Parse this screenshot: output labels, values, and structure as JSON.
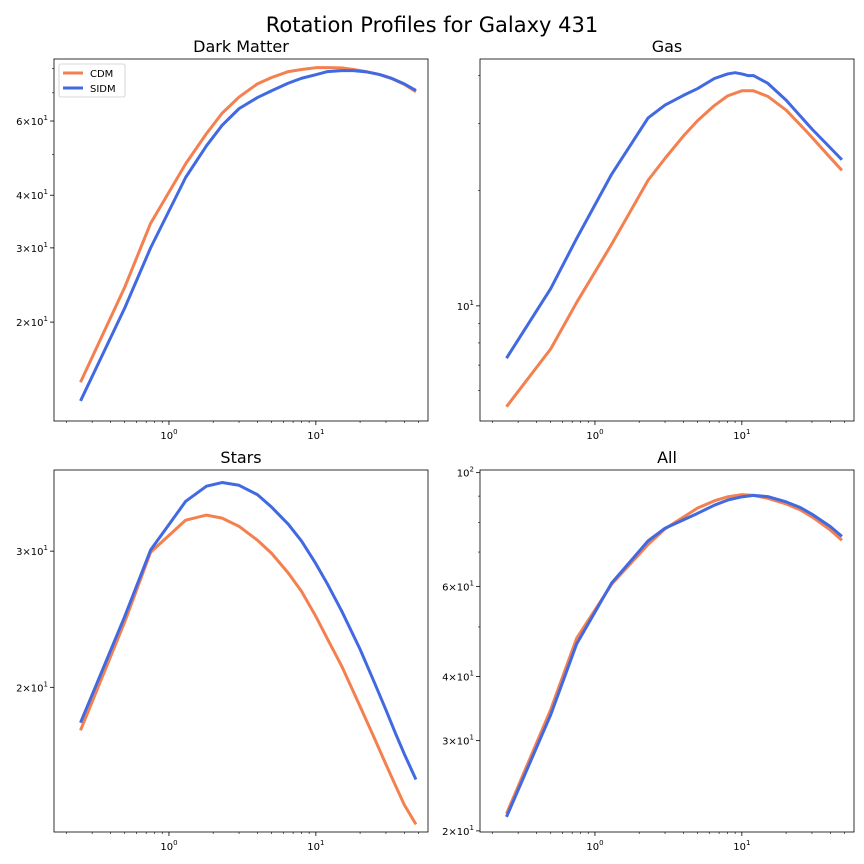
{
  "figure": {
    "suptitle": "Rotation Profiles for Galaxy 431",
    "colors": {
      "CDM": "#f4804f",
      "SIDM": "#4169e1"
    }
  },
  "chart_data": [
    {
      "type": "line",
      "title": "Dark Matter",
      "xscale": "log",
      "yscale": "log",
      "xlim": [
        0.165,
        58
      ],
      "ylim": [
        11.65,
        84.2
      ],
      "xticks": [
        {
          "value": 1,
          "label": "10^0"
        },
        {
          "value": 10,
          "label": "10^1"
        }
      ],
      "yticks": [
        {
          "value": 20,
          "label": "2×10^1"
        },
        {
          "value": 30,
          "label": "3×10^1"
        },
        {
          "value": 40,
          "label": "4×10^1"
        },
        {
          "value": 60,
          "label": "6×10^1"
        }
      ],
      "minor_yticks": [
        50,
        70,
        80
      ],
      "legend": {
        "position": "upper-left",
        "entries": [
          "CDM",
          "SIDM"
        ]
      },
      "series": [
        {
          "name": "CDM",
          "color": "#f4804f",
          "x": [
            0.25,
            0.5,
            0.75,
            1.3,
            1.8,
            2.3,
            3.0,
            4.0,
            5.0,
            6.5,
            8,
            10,
            12,
            15,
            18,
            22,
            27,
            33,
            40,
            48
          ],
          "y": [
            14.4,
            24.2,
            34.3,
            47.5,
            56,
            62.6,
            68.4,
            73.5,
            76.1,
            78.6,
            79.5,
            80.3,
            80.3,
            80.2,
            79.5,
            78.6,
            77.4,
            75.6,
            73.3,
            70.4
          ]
        },
        {
          "name": "SIDM",
          "color": "#4169e1",
          "x": [
            0.25,
            0.5,
            0.75,
            1.3,
            1.8,
            2.3,
            3.0,
            4.0,
            5.0,
            6.5,
            8,
            10,
            12,
            15,
            18,
            22,
            27,
            33,
            40,
            48
          ],
          "y": [
            13,
            21.6,
            30,
            44.1,
            52.4,
            58.6,
            64.2,
            68.2,
            70.8,
            73.8,
            75.8,
            77.3,
            78.6,
            79,
            79,
            78.5,
            77.4,
            75.7,
            73.5,
            70.9
          ]
        }
      ]
    },
    {
      "type": "line",
      "title": "Gas",
      "xscale": "log",
      "yscale": "log",
      "xlim": [
        0.165,
        58
      ],
      "ylim": [
        5.0,
        44.2
      ],
      "xticks": [
        {
          "value": 1,
          "label": "10^0"
        },
        {
          "value": 10,
          "label": "10^1"
        }
      ],
      "yticks": [
        {
          "value": 10,
          "label": "10^1"
        }
      ],
      "minor_yticks": [
        6,
        7,
        8,
        9,
        20,
        30,
        40
      ],
      "series": [
        {
          "name": "CDM",
          "color": "#f4804f",
          "x": [
            0.25,
            0.5,
            0.75,
            1.3,
            2.3,
            3.0,
            4.0,
            5.0,
            6.5,
            8,
            10,
            12,
            15,
            20,
            28,
            40,
            48
          ],
          "y": [
            5.45,
            7.72,
            10.2,
            14.5,
            21.3,
            24.3,
            27.8,
            30.5,
            33.4,
            35.4,
            36.5,
            36.5,
            35.3,
            32.5,
            28.4,
            24.4,
            22.6
          ]
        },
        {
          "name": "SIDM",
          "color": "#4169e1",
          "x": [
            0.25,
            0.5,
            0.75,
            1.3,
            2.3,
            3.0,
            4.0,
            5.0,
            6.5,
            8,
            9,
            10,
            11,
            12,
            15,
            20,
            30,
            48
          ],
          "y": [
            7.3,
            11.1,
            15,
            22.1,
            31,
            33.5,
            35.5,
            37,
            39.3,
            40.4,
            40.7,
            40.4,
            40,
            40,
            38.2,
            34.5,
            29,
            24.1
          ]
        }
      ]
    },
    {
      "type": "line",
      "title": "Stars",
      "xscale": "log",
      "yscale": "log",
      "xlim": [
        0.165,
        58
      ],
      "ylim": [
        13.0,
        38.2
      ],
      "xticks": [
        {
          "value": 1,
          "label": "10^0"
        },
        {
          "value": 10,
          "label": "10^1"
        }
      ],
      "yticks": [
        {
          "value": 20,
          "label": "2×10^1"
        },
        {
          "value": 30,
          "label": "3×10^1"
        }
      ],
      "series": [
        {
          "name": "CDM",
          "color": "#f4804f",
          "x": [
            0.25,
            0.5,
            0.75,
            1.3,
            1.8,
            2.3,
            3.0,
            4.0,
            5.0,
            6.5,
            8,
            10,
            12,
            15,
            20,
            25,
            30,
            35,
            40,
            48
          ],
          "y": [
            17.6,
            24.3,
            29.9,
            32.9,
            33.4,
            33.1,
            32.3,
            31,
            29.8,
            28.1,
            26.6,
            24.7,
            23.1,
            21.3,
            18.9,
            17.2,
            15.9,
            14.9,
            14.1,
            13.3
          ]
        },
        {
          "name": "SIDM",
          "color": "#4169e1",
          "x": [
            0.25,
            0.5,
            0.75,
            1.3,
            1.8,
            2.3,
            3.0,
            4.0,
            5.0,
            6.5,
            8,
            10,
            12,
            15,
            20,
            25,
            30,
            35,
            40,
            48
          ],
          "y": [
            18,
            24.7,
            30.1,
            34.8,
            36.4,
            36.8,
            36.5,
            35.5,
            34.2,
            32.5,
            30.9,
            28.9,
            27.2,
            25.1,
            22.4,
            20.3,
            18.7,
            17.4,
            16.4,
            15.2
          ]
        }
      ]
    },
    {
      "type": "line",
      "title": "All",
      "xscale": "log",
      "yscale": "log",
      "xlim": [
        0.165,
        58
      ],
      "ylim": [
        19.9,
        101.2
      ],
      "xticks": [
        {
          "value": 1,
          "label": "10^0"
        },
        {
          "value": 10,
          "label": "10^1"
        }
      ],
      "yticks": [
        {
          "value": 20,
          "label": "2×10^1"
        },
        {
          "value": 30,
          "label": "3×10^1"
        },
        {
          "value": 40,
          "label": "4×10^1"
        },
        {
          "value": 60,
          "label": "6×10^1"
        },
        {
          "value": 100,
          "label": "10^2"
        }
      ],
      "minor_yticks": [
        50,
        70,
        80,
        90
      ],
      "series": [
        {
          "name": "CDM",
          "color": "#f4804f",
          "x": [
            0.25,
            0.5,
            0.75,
            1.3,
            2.3,
            3.0,
            4.0,
            5.0,
            6.5,
            8,
            10,
            12,
            15,
            20,
            25,
            30,
            40,
            48
          ],
          "y": [
            21.6,
            34.5,
            47.5,
            60.6,
            72.4,
            77.7,
            81.9,
            85.3,
            88.1,
            89.7,
            90.6,
            90.3,
            89.1,
            86.9,
            84.6,
            82,
            77.3,
            73.8
          ]
        },
        {
          "name": "SIDM",
          "color": "#4169e1",
          "x": [
            0.25,
            0.5,
            0.75,
            1.3,
            2.3,
            3.0,
            4.0,
            5.0,
            6.5,
            8,
            10,
            12,
            15,
            20,
            25,
            30,
            40,
            48
          ],
          "y": [
            21.3,
            33.7,
            46.3,
            60.9,
            73.6,
            77.9,
            80.9,
            83.3,
            86.4,
            88.4,
            89.7,
            90.3,
            89.8,
            87.7,
            85.5,
            83,
            78.5,
            75.1
          ]
        }
      ]
    }
  ]
}
